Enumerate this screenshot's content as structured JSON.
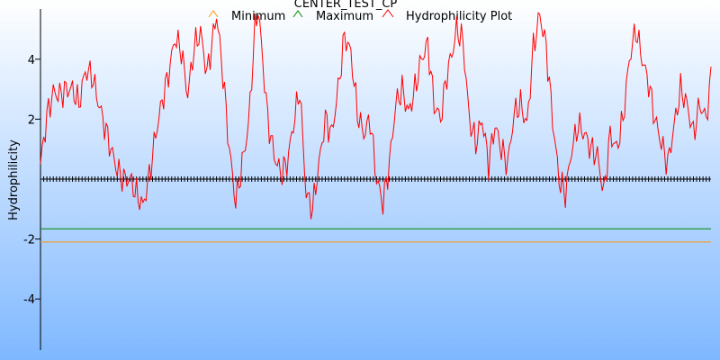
{
  "chart_data": {
    "type": "line",
    "title": "CENTER_TEST_CP",
    "xlabel": "",
    "ylabel": "Hydrophilicity",
    "ylim": [
      -5.7,
      5.7
    ],
    "yticks": [
      -4,
      -2,
      2,
      4
    ],
    "grid": false,
    "legend_position": "top",
    "x_count": 420,
    "background_colors": [
      "#ffffff",
      "#7fb8ff"
    ],
    "series": [
      {
        "name": "Minimum",
        "color": "#ff9900",
        "kind": "hline",
        "value": -2.1
      },
      {
        "name": "Maximum",
        "color": "#008800",
        "kind": "hline",
        "value": -1.66
      },
      {
        "name": "Hydrophilicity Plot",
        "color": "#ff0000",
        "kind": "curve",
        "points": [
          [
            0,
            0.5
          ],
          [
            4,
            2.1
          ],
          [
            8,
            2.9
          ],
          [
            12,
            2.8
          ],
          [
            16,
            3.0
          ],
          [
            20,
            3.0
          ],
          [
            24,
            2.5
          ],
          [
            28,
            3.6
          ],
          [
            32,
            3.5
          ],
          [
            36,
            2.6
          ],
          [
            40,
            1.8
          ],
          [
            44,
            1.0
          ],
          [
            48,
            0.3
          ],
          [
            52,
            0.0
          ],
          [
            56,
            0.0
          ],
          [
            60,
            -0.5
          ],
          [
            64,
            -0.9
          ],
          [
            68,
            0.1
          ],
          [
            72,
            1.5
          ],
          [
            76,
            2.6
          ],
          [
            80,
            3.5
          ],
          [
            84,
            4.7
          ],
          [
            88,
            4.3
          ],
          [
            92,
            2.8
          ],
          [
            96,
            4.4
          ],
          [
            100,
            4.9
          ],
          [
            104,
            3.5
          ],
          [
            108,
            4.8
          ],
          [
            110,
            5.5
          ],
          [
            114,
            3.5
          ],
          [
            118,
            1.0
          ],
          [
            122,
            -0.8
          ],
          [
            126,
            0.5
          ],
          [
            130,
            1.8
          ],
          [
            134,
            5.0
          ],
          [
            136,
            5.7
          ],
          [
            138,
            4.5
          ],
          [
            142,
            2.0
          ],
          [
            146,
            0.8
          ],
          [
            150,
            0.2
          ],
          [
            154,
            0.5
          ],
          [
            158,
            1.8
          ],
          [
            162,
            3.0
          ],
          [
            166,
            -0.5
          ],
          [
            170,
            -1.0
          ],
          [
            174,
            0.5
          ],
          [
            178,
            2.0
          ],
          [
            182,
            1.5
          ],
          [
            186,
            3.0
          ],
          [
            190,
            4.8
          ],
          [
            194,
            4.2
          ],
          [
            198,
            2.2
          ],
          [
            202,
            1.5
          ],
          [
            206,
            2.0
          ],
          [
            210,
            0.0
          ],
          [
            214,
            -0.8
          ],
          [
            218,
            0.5
          ],
          [
            222,
            2.5
          ],
          [
            226,
            3.0
          ],
          [
            230,
            2.2
          ],
          [
            234,
            3.0
          ],
          [
            238,
            4.0
          ],
          [
            242,
            4.5
          ],
          [
            246,
            2.5
          ],
          [
            250,
            2.0
          ],
          [
            254,
            3.5
          ],
          [
            258,
            4.4
          ],
          [
            260,
            5.0
          ],
          [
            264,
            4.6
          ],
          [
            268,
            2.0
          ],
          [
            272,
            1.2
          ],
          [
            276,
            2.0
          ],
          [
            280,
            0.5
          ],
          [
            284,
            1.8
          ],
          [
            288,
            1.0
          ],
          [
            292,
            0.5
          ],
          [
            296,
            2.2
          ],
          [
            300,
            2.5
          ],
          [
            304,
            1.8
          ],
          [
            308,
            4.4
          ],
          [
            312,
            5.5
          ],
          [
            316,
            4.4
          ],
          [
            320,
            2.0
          ],
          [
            324,
            0.0
          ],
          [
            328,
            -0.5
          ],
          [
            332,
            1.0
          ],
          [
            336,
            1.8
          ],
          [
            340,
            1.5
          ],
          [
            344,
            1.0
          ],
          [
            348,
            0.8
          ],
          [
            352,
            -0.5
          ],
          [
            356,
            1.5
          ],
          [
            360,
            1.0
          ],
          [
            364,
            2.0
          ],
          [
            368,
            4.0
          ],
          [
            372,
            5.0
          ],
          [
            376,
            4.0
          ],
          [
            380,
            3.2
          ],
          [
            384,
            2.0
          ],
          [
            388,
            1.2
          ],
          [
            392,
            0.5
          ],
          [
            396,
            1.8
          ],
          [
            400,
            3.0
          ],
          [
            404,
            2.5
          ],
          [
            408,
            1.5
          ],
          [
            412,
            2.5
          ],
          [
            416,
            2.0
          ],
          [
            419,
            3.4
          ]
        ]
      }
    ],
    "baseline": {
      "value": 0,
      "color": "#000000",
      "marker": "+"
    }
  }
}
